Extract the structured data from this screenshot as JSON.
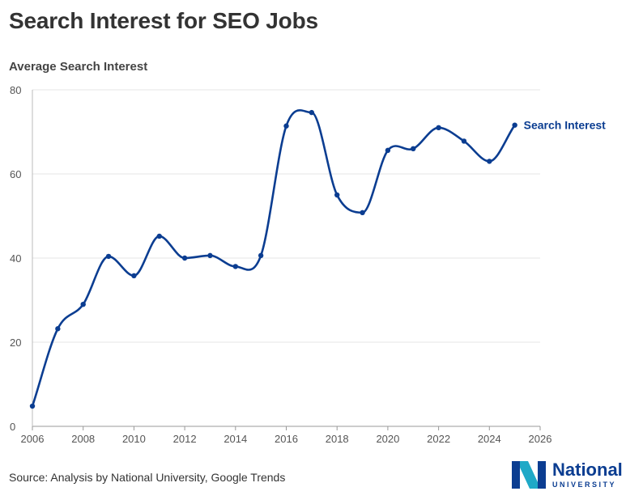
{
  "header": {
    "title": "Search Interest for SEO Jobs"
  },
  "footer": {
    "source": "Source: Analysis by National University, Google Trends"
  },
  "logo": {
    "name": "National",
    "sub": "UNIVERSITY",
    "colors": {
      "navy": "#0b3d91",
      "teal": "#1fa9c7"
    }
  },
  "chart_data": {
    "type": "line",
    "ylabel": "Average Search Interest",
    "xlabel": "",
    "xlim": [
      2006,
      2026
    ],
    "ylim": [
      0,
      80
    ],
    "x_ticks": [
      2006,
      2008,
      2010,
      2012,
      2014,
      2016,
      2018,
      2020,
      2022,
      2024,
      2026
    ],
    "y_ticks": [
      0,
      20,
      40,
      60,
      80
    ],
    "grid": "horizontal",
    "line_color": "#0b3d91",
    "series": [
      {
        "name": "Search Interest",
        "x": [
          2006,
          2007,
          2008,
          2009,
          2010,
          2011,
          2012,
          2013,
          2014,
          2015,
          2016,
          2017,
          2018,
          2019,
          2020,
          2021,
          2022,
          2023,
          2024,
          2025
        ],
        "values": [
          4.8,
          23.2,
          29.0,
          40.4,
          35.8,
          45.2,
          40.0,
          40.6,
          38.0,
          40.6,
          71.4,
          74.6,
          55.0,
          50.8,
          65.6,
          66.0,
          71.0,
          67.8,
          63.0,
          71.6
        ]
      }
    ]
  }
}
